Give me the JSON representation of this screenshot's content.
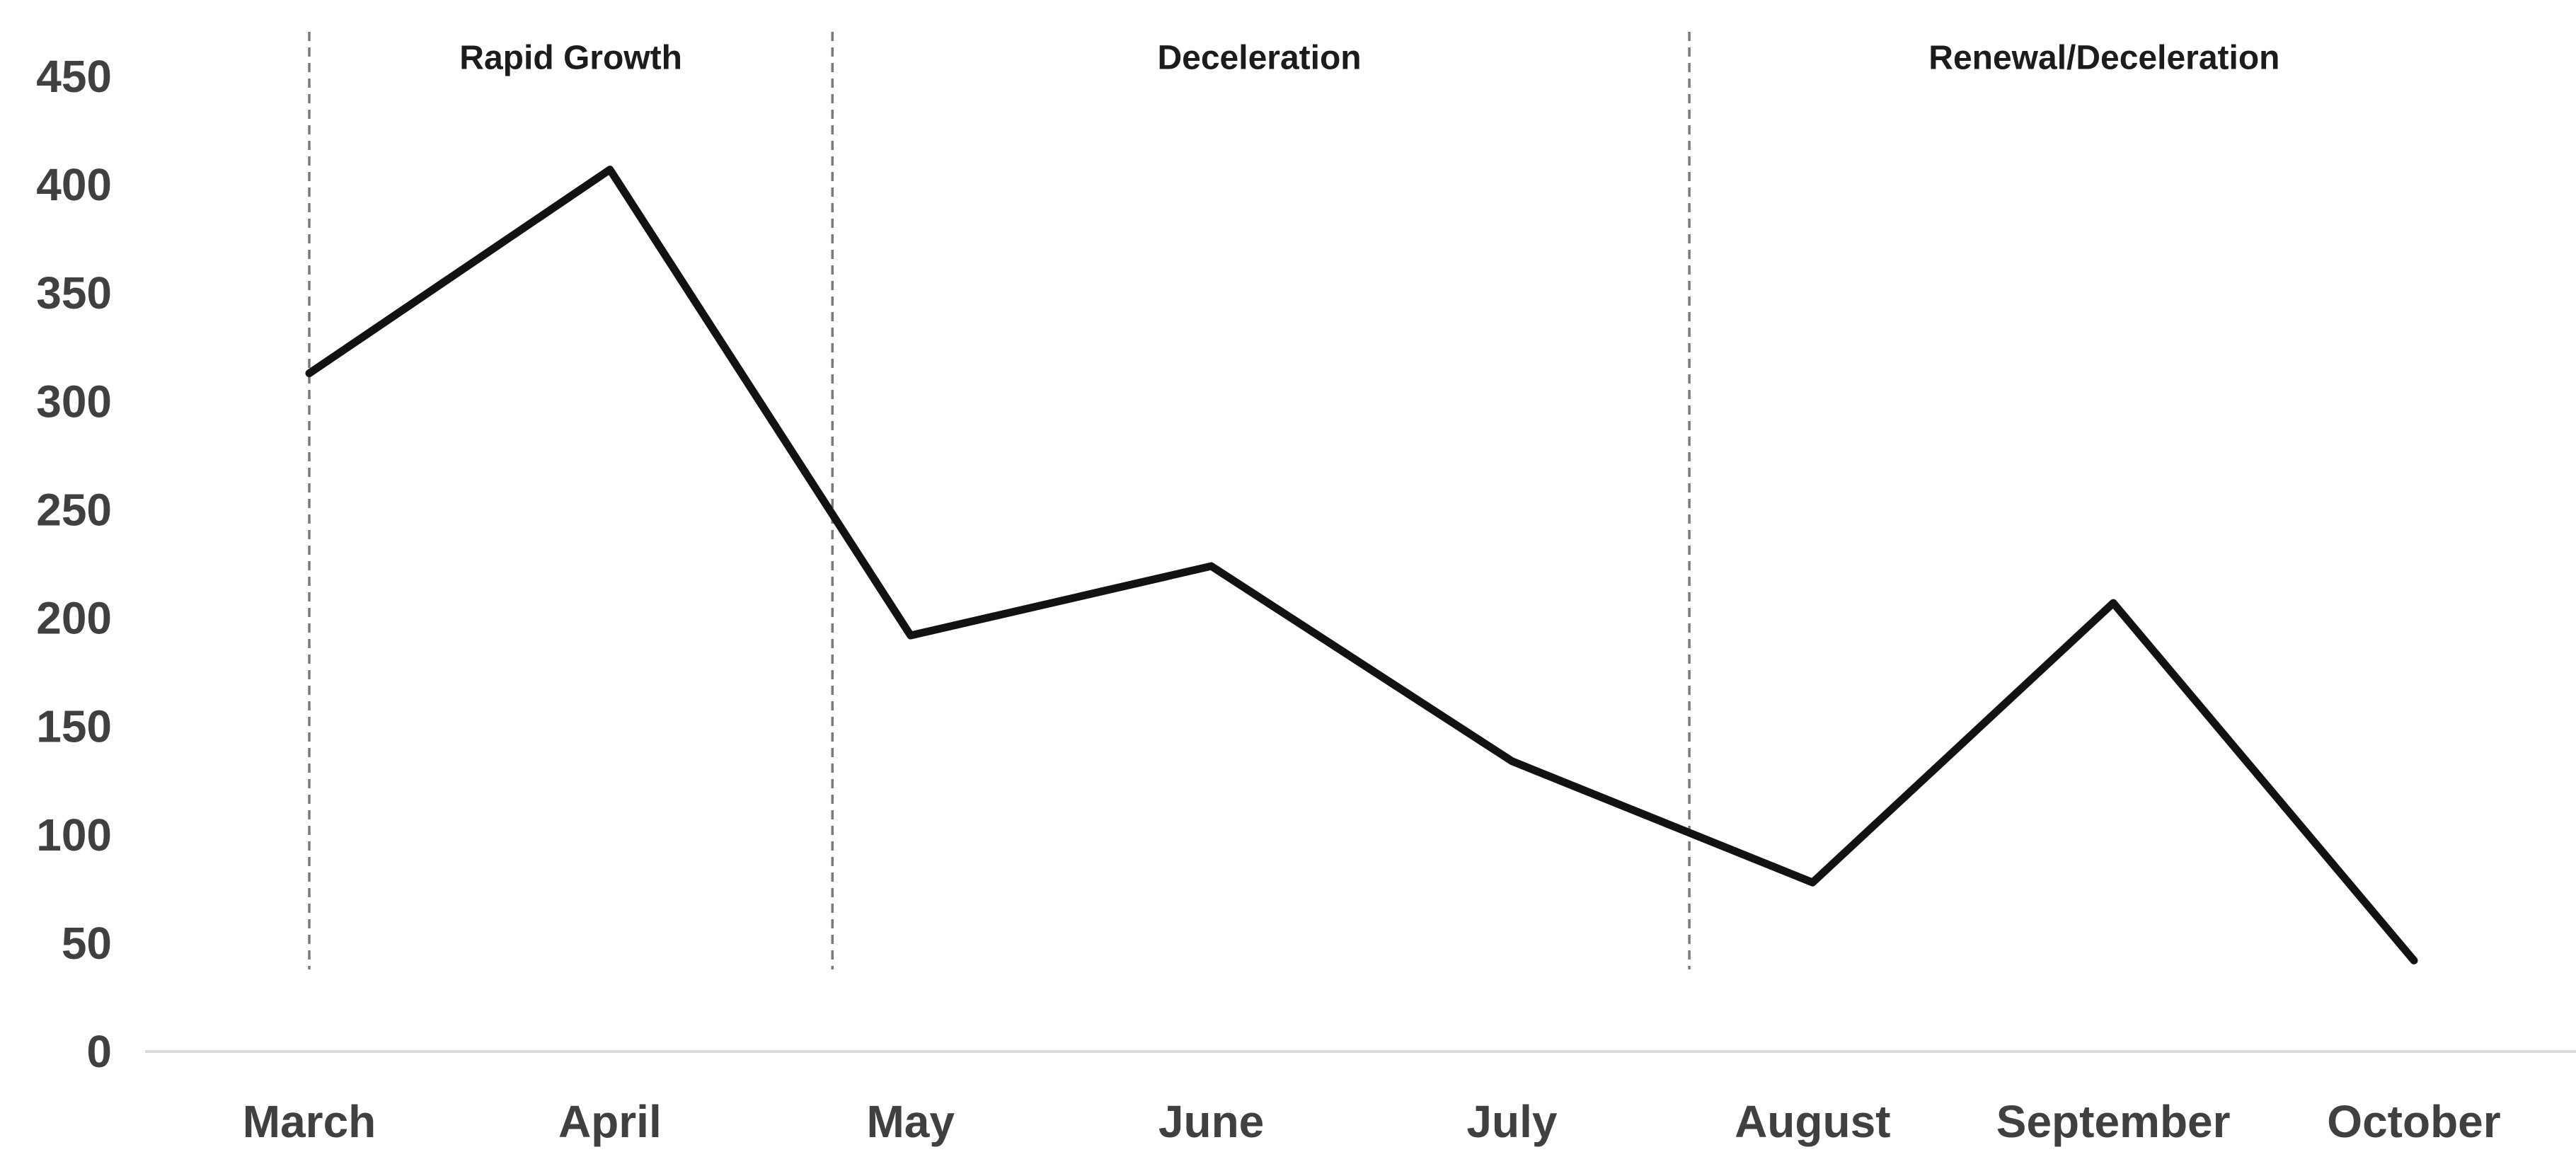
{
  "chart_data": {
    "type": "line",
    "categories": [
      "March",
      "April",
      "May",
      "June",
      "July",
      "August",
      "September",
      "October"
    ],
    "values": [
      313,
      407,
      192,
      224,
      134,
      78,
      207,
      42
    ],
    "title": "",
    "xlabel": "",
    "ylabel": "",
    "ylim": [
      0,
      450
    ],
    "ytick_step": 50,
    "ytick_labels": [
      "0",
      "50",
      "100",
      "150",
      "200",
      "250",
      "300",
      "350",
      "400",
      "450"
    ],
    "grid": false,
    "legend": false,
    "line_color": "#121212",
    "axis_line_color": "#d9d9d9",
    "tick_label_color": "#404040",
    "divider_color": "#7a7a7a",
    "annotations": {
      "phases": [
        {
          "label": "Rapid Growth",
          "center_index": 0.87
        },
        {
          "label": "Deceleration",
          "center_index": 3.16
        },
        {
          "label": "Renewal/Deceleration",
          "center_index": 5.97
        }
      ],
      "dividers_index": [
        0,
        1.74,
        4.59
      ]
    }
  }
}
